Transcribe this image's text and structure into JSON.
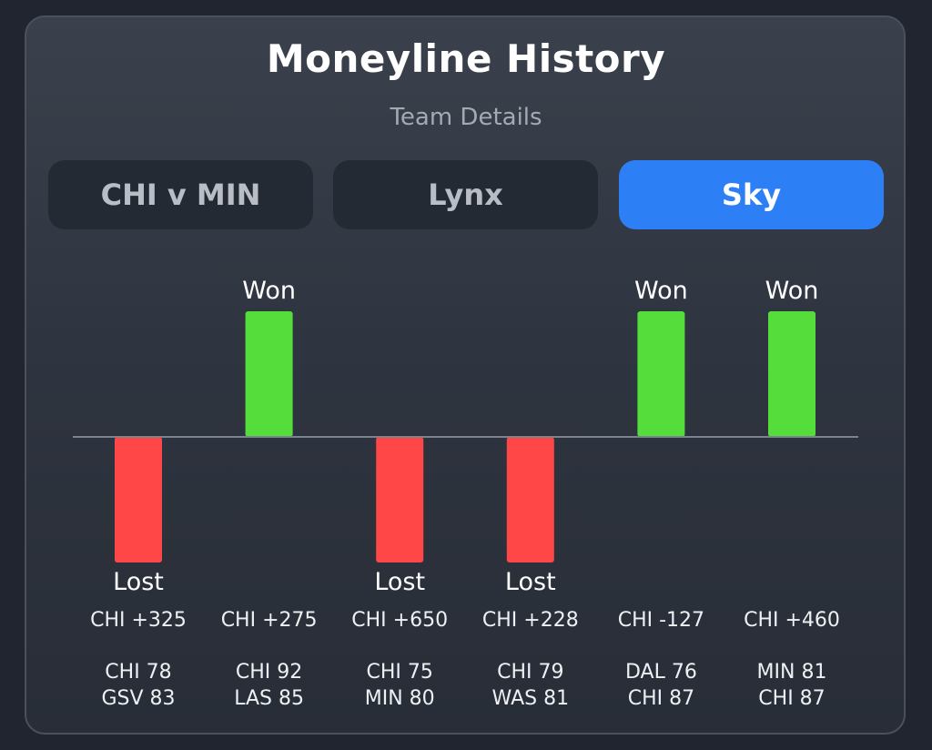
{
  "header": {
    "title": "Moneyline History",
    "subtitle": "Team Details"
  },
  "tabs": [
    {
      "label": "CHI v MIN",
      "active": false
    },
    {
      "label": "Lynx",
      "active": false
    },
    {
      "label": "Sky",
      "active": true
    }
  ],
  "colors": {
    "won": "#55dd3c",
    "lost": "#ff4747",
    "accent": "#2d7ff5",
    "baseline": "#7c838f"
  },
  "chart_data": {
    "type": "bar",
    "title": "Moneyline History",
    "categories": [
      "CHI +325",
      "CHI +275",
      "CHI +650",
      "CHI +228",
      "CHI -127",
      "CHI +460"
    ],
    "values": [
      -1,
      1,
      -1,
      -1,
      1,
      1
    ],
    "results": [
      "Lost",
      "Won",
      "Lost",
      "Lost",
      "Won",
      "Won"
    ],
    "scores": [
      [
        "CHI 78",
        "GSV 83"
      ],
      [
        "CHI 92",
        "LAS 85"
      ],
      [
        "CHI 75",
        "MIN 80"
      ],
      [
        "CHI 79",
        "WAS 81"
      ],
      [
        "DAL 76",
        "CHI 87"
      ],
      [
        "MIN 81",
        "CHI 87"
      ]
    ],
    "ylim": [
      -1,
      1
    ]
  }
}
